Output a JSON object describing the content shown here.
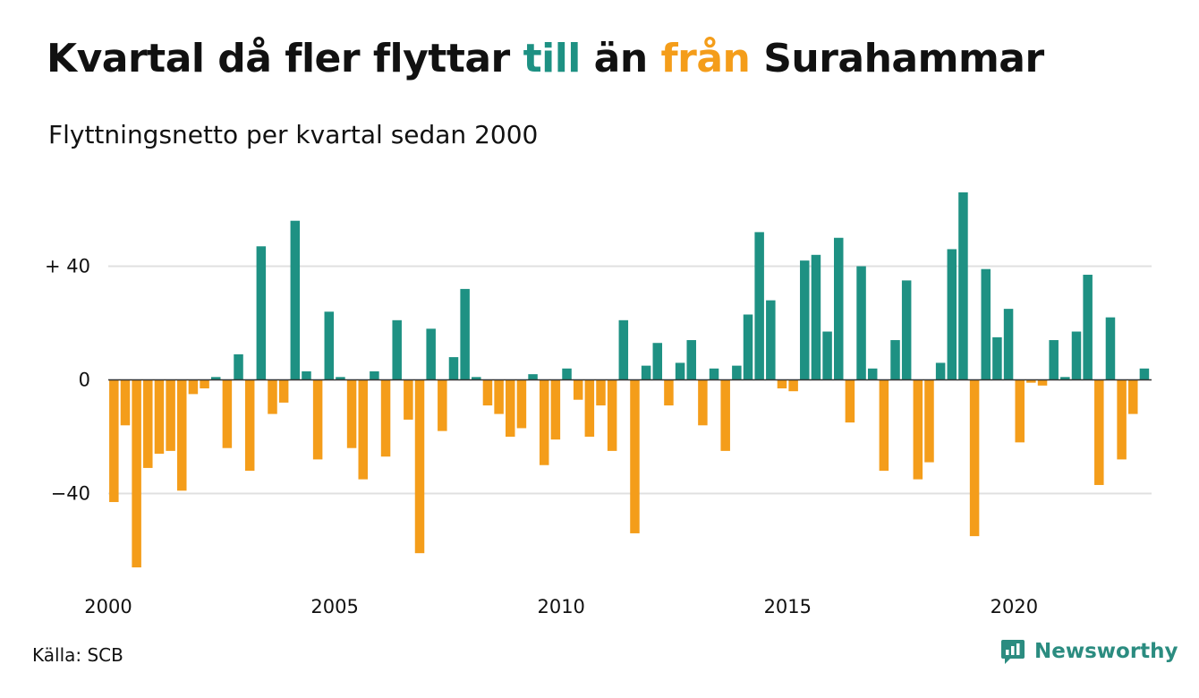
{
  "title": {
    "part1": "Kvartal då fler flyttar ",
    "highlight_in": "till",
    "part2": " än ",
    "highlight_out": "från",
    "part3": " Surahammar"
  },
  "subtitle": "Flyttningsnetto per kvartal sedan 2000",
  "source": "Källa: SCB",
  "brand": {
    "name": "Newsworthy",
    "icon": "newsworthy-logo-icon"
  },
  "colors": {
    "positive": "#1e9183",
    "negative": "#f49d1a",
    "grid": "#e0e0e0",
    "zero": "#333333"
  },
  "chart_data": {
    "type": "bar",
    "title": "Kvartal då fler flyttar till än från Surahammar",
    "subtitle": "Flyttningsnetto per kvartal sedan 2000",
    "xlabel": "",
    "ylabel": "",
    "x_ticks": [
      "2000",
      "2005",
      "2010",
      "2015",
      "2020"
    ],
    "y_ticks": [
      {
        "value": 40,
        "label": "+ 40"
      },
      {
        "value": 0,
        "label": "0"
      },
      {
        "value": -40,
        "label": "−40"
      }
    ],
    "ylim": [
      -70,
      70
    ],
    "xlim": [
      2000,
      2023.5
    ],
    "grid": true,
    "legend": "none",
    "values": [
      -43,
      -16,
      -66,
      -31,
      -26,
      -25,
      -39,
      -5,
      -3,
      1,
      -24,
      9,
      -32,
      47,
      -12,
      -8,
      56,
      3,
      -28,
      24,
      1,
      -24,
      -35,
      3,
      -27,
      21,
      -14,
      -61,
      18,
      -18,
      8,
      32,
      1,
      -9,
      -12,
      -20,
      -17,
      2,
      -30,
      -21,
      4,
      -7,
      -20,
      -9,
      -25,
      21,
      -54,
      5,
      13,
      -9,
      6,
      14,
      -16,
      4,
      -25,
      5,
      23,
      52,
      28,
      -3,
      -4,
      42,
      44,
      17,
      50,
      -15,
      40,
      4,
      -32,
      14,
      35,
      -35,
      -29,
      6,
      46,
      66,
      -55,
      39,
      15,
      25,
      -22,
      -1,
      -2,
      14,
      1,
      17,
      37,
      -37,
      22,
      -28,
      -12,
      4
    ]
  }
}
